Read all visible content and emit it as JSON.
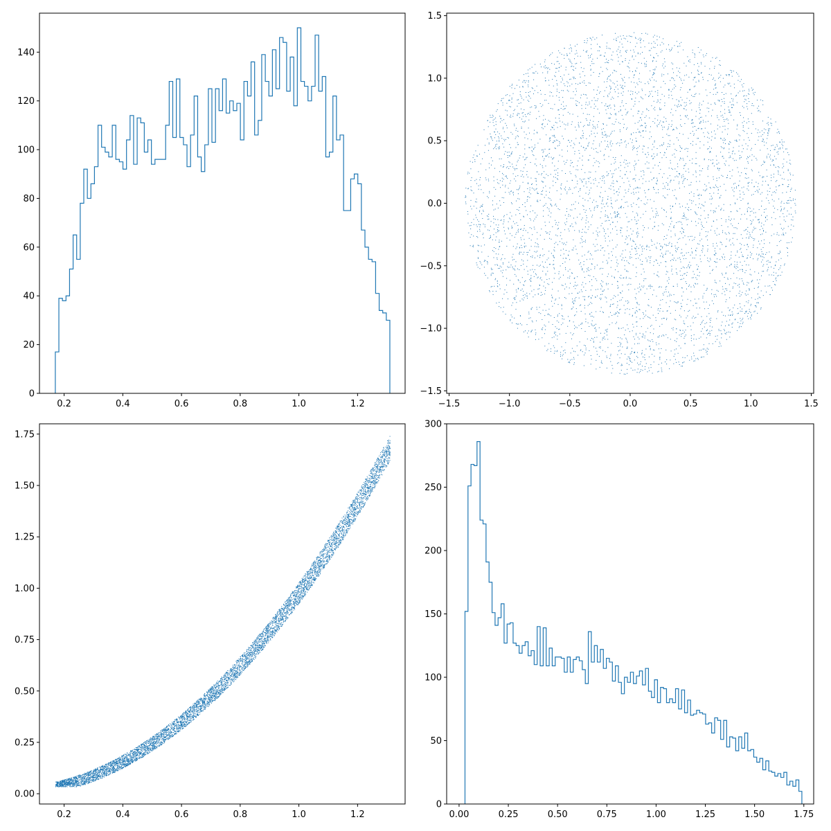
{
  "chart_data": [
    {
      "panel": "top-left",
      "type": "histogram",
      "title": "",
      "xlabel": "",
      "ylabel": "",
      "xlim": [
        0.116,
        1.362
      ],
      "ylim": [
        0,
        156
      ],
      "xticks": [
        0.2,
        0.4,
        0.6,
        0.8,
        1.0,
        1.2
      ],
      "yticks": [
        0,
        20,
        40,
        60,
        80,
        100,
        120,
        140
      ],
      "tick_decimals": {
        "x": 1,
        "y": 0
      },
      "bin_range": [
        0.17,
        1.31
      ],
      "counts": [
        17,
        39,
        38,
        40,
        51,
        65,
        55,
        78,
        92,
        80,
        86,
        93,
        110,
        101,
        99,
        97,
        110,
        96,
        95,
        92,
        104,
        114,
        94,
        113,
        111,
        99,
        104,
        94,
        96,
        96,
        96,
        110,
        128,
        105,
        129,
        105,
        102,
        93,
        106,
        122,
        97,
        91,
        102,
        125,
        103,
        125,
        116,
        129,
        115,
        120,
        116,
        119,
        104,
        128,
        122,
        136,
        106,
        112,
        139,
        128,
        122,
        141,
        125,
        146,
        144,
        124,
        138,
        118,
        150,
        128,
        126,
        120,
        126,
        147,
        124,
        130,
        97,
        99,
        122,
        104,
        106,
        75,
        75,
        88,
        90,
        86,
        67,
        60,
        55,
        54,
        41,
        34,
        33,
        30
      ]
    },
    {
      "panel": "top-right",
      "type": "scatter",
      "title": "",
      "xlabel": "",
      "ylabel": "",
      "xlim": [
        -1.52,
        1.52
      ],
      "ylim": [
        -1.52,
        1.52
      ],
      "xticks": [
        -1.5,
        -1.0,
        -0.5,
        0.0,
        0.5,
        1.0,
        1.5
      ],
      "yticks": [
        -1.5,
        -1.0,
        -0.5,
        0.0,
        0.5,
        1.0,
        1.5
      ],
      "tick_decimals": {
        "x": 1,
        "y": 1
      },
      "marker": "pixel",
      "point_count": 10000,
      "shape": "disk",
      "center": [
        0,
        0
      ],
      "radius": 1.37,
      "color": "#1f77b4"
    },
    {
      "panel": "bottom-left",
      "type": "scatter",
      "title": "",
      "xlabel": "",
      "ylabel": "",
      "xlim": [
        0.116,
        1.362
      ],
      "ylim": [
        -0.05,
        1.8
      ],
      "xticks": [
        0.2,
        0.4,
        0.6,
        0.8,
        1.0,
        1.2
      ],
      "yticks": [
        0.0,
        0.25,
        0.5,
        0.75,
        1.0,
        1.25,
        1.5,
        1.75
      ],
      "tick_decimals": {
        "x": 1,
        "y": 2
      },
      "marker": "pixel",
      "point_count": 10000,
      "x_range": [
        0.17,
        1.31
      ],
      "band": {
        "upper_curve": "y = x^2",
        "lower_curve": "y = x^2 - 0.12*(1 - x)^0 * (x/1.31)^2 ... approx band",
        "upper_at_end": 1.74,
        "lower_at_end": 1.55,
        "lower_at_start": 0.04,
        "upper_at_start": 0.06
      },
      "color": "#1f77b4"
    },
    {
      "panel": "bottom-right",
      "type": "histogram",
      "title": "",
      "xlabel": "",
      "ylabel": "",
      "xlim": [
        -0.063,
        1.8
      ],
      "ylim": [
        0,
        300
      ],
      "xticks": [
        0.0,
        0.25,
        0.5,
        0.75,
        1.0,
        1.25,
        1.5,
        1.75
      ],
      "yticks": [
        0,
        50,
        100,
        150,
        200,
        250,
        300
      ],
      "tick_decimals": {
        "x": 2,
        "y": 0
      },
      "bin_range": [
        0.03,
        1.74
      ],
      "counts": [
        152,
        251,
        268,
        267,
        286,
        224,
        221,
        191,
        175,
        151,
        141,
        147,
        158,
        127,
        142,
        143,
        127,
        125,
        119,
        125,
        128,
        117,
        121,
        110,
        140,
        109,
        139,
        109,
        123,
        109,
        116,
        116,
        115,
        104,
        116,
        104,
        114,
        116,
        113,
        106,
        95,
        136,
        112,
        125,
        112,
        122,
        107,
        115,
        112,
        97,
        109,
        96,
        87,
        100,
        96,
        104,
        95,
        101,
        105,
        94,
        107,
        89,
        84,
        98,
        80,
        92,
        91,
        80,
        83,
        80,
        91,
        75,
        90,
        72,
        82,
        70,
        71,
        74,
        72,
        71,
        63,
        64,
        56,
        68,
        66,
        51,
        66,
        45,
        53,
        52,
        42,
        53,
        44,
        56,
        42,
        43,
        37,
        33,
        36,
        27,
        34,
        26,
        25,
        22,
        24,
        21,
        25,
        15,
        18,
        14,
        19,
        10
      ]
    }
  ]
}
